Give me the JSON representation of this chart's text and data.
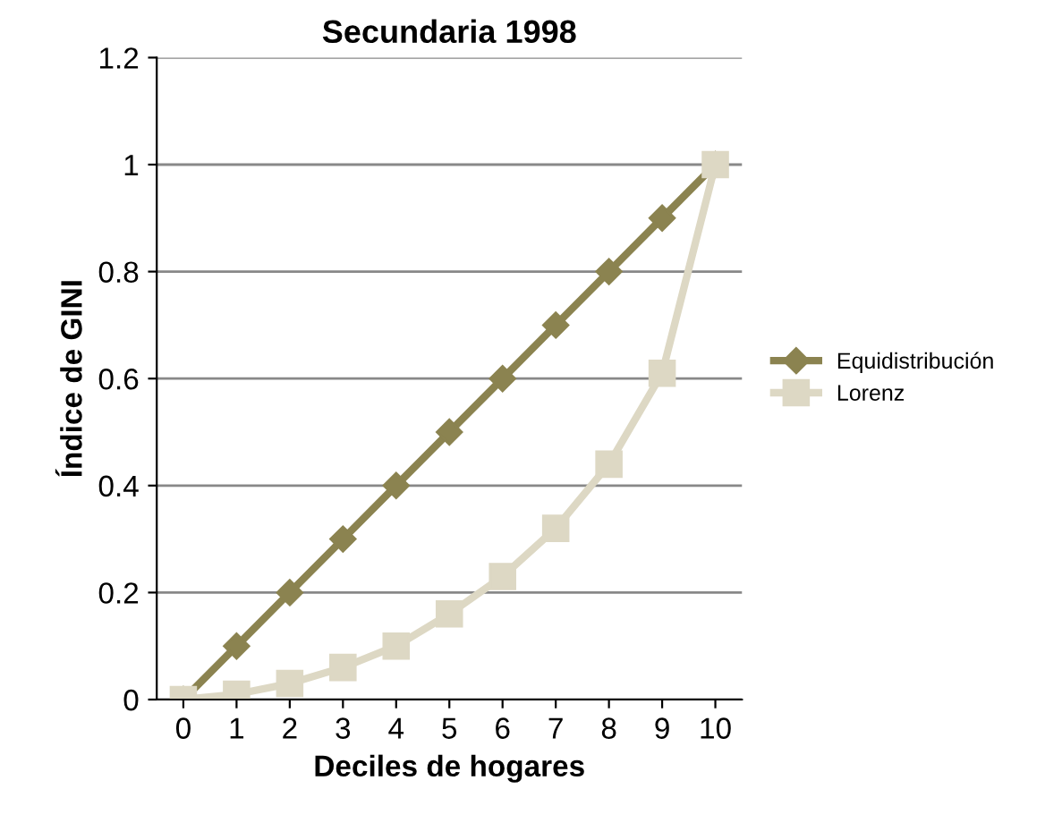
{
  "chart_data": {
    "type": "line",
    "title": "Secundaria 1998",
    "xlabel": "Deciles de hogares",
    "ylabel": "Índice de GINI",
    "categories": [
      "0",
      "1",
      "2",
      "3",
      "4",
      "5",
      "6",
      "7",
      "8",
      "9",
      "10"
    ],
    "series": [
      {
        "name": "Equidistribución",
        "color": "#8b8350",
        "marker": "diamond",
        "values": [
          0,
          0.1,
          0.2,
          0.3,
          0.4,
          0.5,
          0.6,
          0.7,
          0.8,
          0.9,
          1
        ]
      },
      {
        "name": "Lorenz",
        "color": "#ddd8c4",
        "marker": "square",
        "values": [
          0,
          0.01,
          0.03,
          0.06,
          0.1,
          0.16,
          0.23,
          0.32,
          0.44,
          0.61,
          1
        ]
      }
    ],
    "ylim": [
      0,
      1.2
    ],
    "yticks": [
      0,
      0.2,
      0.4,
      0.6,
      0.8,
      1,
      1.2
    ],
    "grid": "y",
    "legend": "right"
  }
}
